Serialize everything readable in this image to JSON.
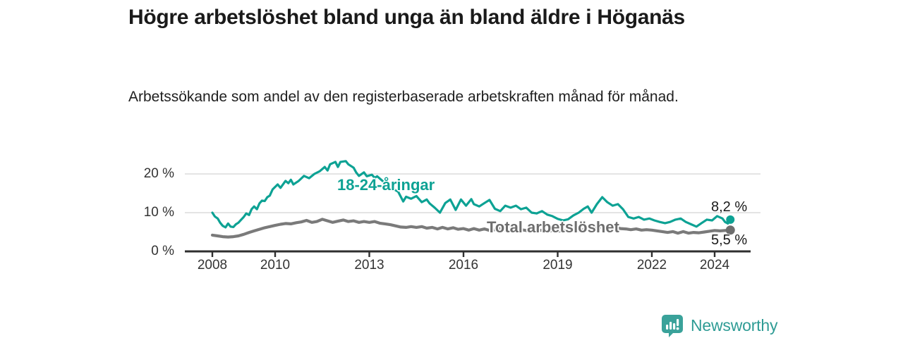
{
  "header": {
    "title": "Högre arbetslöshet bland unga än bland äldre i Höganäs",
    "subtitle": "Arbetssökande som andel av den registerbaserade arbetskraften månad för månad."
  },
  "chart_data": {
    "type": "line",
    "title": "Högre arbetslöshet bland unga än bland äldre i Höganäs",
    "subtitle": "Arbetssökande som andel av den registerbaserade arbetskraften månad för månad.",
    "unit": "%",
    "grid": "horizontal-light",
    "legend_position": "inline-labels-on-lines",
    "xlabel": "",
    "ylabel": "",
    "ylim": [
      0,
      25
    ],
    "xlim": [
      2007.1,
      2025.5
    ],
    "y_ticks": [
      {
        "value": 0,
        "label": "0 %"
      },
      {
        "value": 10,
        "label": "10 %"
      },
      {
        "value": 20,
        "label": "20 %"
      }
    ],
    "x_ticks": [
      {
        "value": 2008,
        "label": "2008"
      },
      {
        "value": 2010,
        "label": "2010"
      },
      {
        "value": 2013,
        "label": "2013"
      },
      {
        "value": 2016,
        "label": "2016"
      },
      {
        "value": 2019,
        "label": "2019"
      },
      {
        "value": 2022,
        "label": "2022"
      },
      {
        "value": 2024,
        "label": "2024"
      }
    ],
    "series": [
      {
        "name": "18-24-åringar",
        "color": "#0da294",
        "line_width": 3.2,
        "end_value": 8.2,
        "end_label": "8,2 %",
        "points": [
          [
            2008.0,
            10.0
          ],
          [
            2008.08,
            9.0
          ],
          [
            2008.17,
            8.5
          ],
          [
            2008.25,
            7.4
          ],
          [
            2008.33,
            6.6
          ],
          [
            2008.42,
            6.2
          ],
          [
            2008.5,
            7.2
          ],
          [
            2008.58,
            6.4
          ],
          [
            2008.67,
            6.3
          ],
          [
            2008.75,
            7.0
          ],
          [
            2008.83,
            7.4
          ],
          [
            2008.92,
            8.2
          ],
          [
            2009.0,
            8.9
          ],
          [
            2009.08,
            9.8
          ],
          [
            2009.17,
            9.4
          ],
          [
            2009.25,
            10.9
          ],
          [
            2009.33,
            11.6
          ],
          [
            2009.42,
            10.9
          ],
          [
            2009.5,
            12.4
          ],
          [
            2009.58,
            13.1
          ],
          [
            2009.67,
            13.0
          ],
          [
            2009.75,
            14.0
          ],
          [
            2009.83,
            14.4
          ],
          [
            2009.92,
            16.0
          ],
          [
            2010.08,
            17.3
          ],
          [
            2010.17,
            16.4
          ],
          [
            2010.33,
            18.2
          ],
          [
            2010.42,
            17.6
          ],
          [
            2010.5,
            18.5
          ],
          [
            2010.58,
            17.3
          ],
          [
            2010.75,
            18.2
          ],
          [
            2010.92,
            19.5
          ],
          [
            2011.08,
            18.9
          ],
          [
            2011.25,
            20.0
          ],
          [
            2011.42,
            20.7
          ],
          [
            2011.58,
            21.8
          ],
          [
            2011.67,
            20.9
          ],
          [
            2011.75,
            22.5
          ],
          [
            2011.92,
            23.1
          ],
          [
            2012.0,
            21.8
          ],
          [
            2012.08,
            23.1
          ],
          [
            2012.25,
            23.3
          ],
          [
            2012.33,
            22.5
          ],
          [
            2012.5,
            21.6
          ],
          [
            2012.58,
            20.4
          ],
          [
            2012.67,
            19.5
          ],
          [
            2012.83,
            20.4
          ],
          [
            2012.92,
            19.4
          ],
          [
            2013.08,
            19.8
          ],
          [
            2013.17,
            19.0
          ],
          [
            2013.25,
            19.4
          ],
          [
            2013.42,
            18.2
          ],
          [
            2013.58,
            17.3
          ],
          [
            2013.75,
            16.2
          ],
          [
            2013.92,
            15.4
          ],
          [
            2014.08,
            12.9
          ],
          [
            2014.17,
            14.1
          ],
          [
            2014.33,
            13.6
          ],
          [
            2014.5,
            14.3
          ],
          [
            2014.67,
            12.7
          ],
          [
            2014.83,
            13.4
          ],
          [
            2014.92,
            12.4
          ],
          [
            2015.08,
            11.3
          ],
          [
            2015.25,
            10.0
          ],
          [
            2015.42,
            12.5
          ],
          [
            2015.58,
            13.4
          ],
          [
            2015.75,
            10.7
          ],
          [
            2015.92,
            13.4
          ],
          [
            2016.08,
            11.8
          ],
          [
            2016.25,
            13.5
          ],
          [
            2016.33,
            12.2
          ],
          [
            2016.5,
            11.6
          ],
          [
            2016.67,
            12.5
          ],
          [
            2016.83,
            13.3
          ],
          [
            2017.0,
            11.0
          ],
          [
            2017.17,
            10.4
          ],
          [
            2017.33,
            11.8
          ],
          [
            2017.5,
            11.3
          ],
          [
            2017.67,
            11.8
          ],
          [
            2017.83,
            10.9
          ],
          [
            2018.0,
            11.3
          ],
          [
            2018.17,
            10.0
          ],
          [
            2018.33,
            9.8
          ],
          [
            2018.5,
            10.4
          ],
          [
            2018.67,
            9.5
          ],
          [
            2018.83,
            9.1
          ],
          [
            2019.0,
            8.4
          ],
          [
            2019.17,
            8.0
          ],
          [
            2019.33,
            8.3
          ],
          [
            2019.5,
            9.3
          ],
          [
            2019.67,
            10.0
          ],
          [
            2019.83,
            11.0
          ],
          [
            2019.96,
            11.6
          ],
          [
            2020.08,
            10.0
          ],
          [
            2020.25,
            12.2
          ],
          [
            2020.42,
            14.0
          ],
          [
            2020.58,
            12.7
          ],
          [
            2020.75,
            11.8
          ],
          [
            2020.92,
            12.2
          ],
          [
            2021.08,
            10.9
          ],
          [
            2021.25,
            8.9
          ],
          [
            2021.42,
            8.5
          ],
          [
            2021.58,
            8.9
          ],
          [
            2021.75,
            8.2
          ],
          [
            2021.92,
            8.5
          ],
          [
            2022.08,
            8.0
          ],
          [
            2022.25,
            7.6
          ],
          [
            2022.42,
            7.3
          ],
          [
            2022.58,
            7.6
          ],
          [
            2022.75,
            8.2
          ],
          [
            2022.92,
            8.5
          ],
          [
            2023.08,
            7.6
          ],
          [
            2023.25,
            7.0
          ],
          [
            2023.42,
            6.4
          ],
          [
            2023.58,
            7.3
          ],
          [
            2023.75,
            8.2
          ],
          [
            2023.92,
            8.0
          ],
          [
            2024.08,
            9.1
          ],
          [
            2024.25,
            8.5
          ],
          [
            2024.33,
            7.6
          ],
          [
            2024.42,
            7.2
          ],
          [
            2024.5,
            8.2
          ]
        ]
      },
      {
        "name": "Total arbetslöshet",
        "color": "#7a7a7a",
        "line_width": 4.2,
        "end_value": 5.5,
        "end_label": "5,5 %",
        "points": [
          [
            2008.0,
            4.2
          ],
          [
            2008.17,
            4.0
          ],
          [
            2008.33,
            3.8
          ],
          [
            2008.5,
            3.7
          ],
          [
            2008.67,
            3.8
          ],
          [
            2008.83,
            4.0
          ],
          [
            2009.0,
            4.4
          ],
          [
            2009.17,
            4.9
          ],
          [
            2009.33,
            5.3
          ],
          [
            2009.5,
            5.7
          ],
          [
            2009.67,
            6.1
          ],
          [
            2009.83,
            6.4
          ],
          [
            2010.0,
            6.7
          ],
          [
            2010.17,
            7.0
          ],
          [
            2010.33,
            7.2
          ],
          [
            2010.5,
            7.1
          ],
          [
            2010.67,
            7.4
          ],
          [
            2010.83,
            7.6
          ],
          [
            2011.0,
            8.0
          ],
          [
            2011.17,
            7.5
          ],
          [
            2011.33,
            7.7
          ],
          [
            2011.5,
            8.3
          ],
          [
            2011.67,
            7.9
          ],
          [
            2011.83,
            7.5
          ],
          [
            2012.0,
            7.8
          ],
          [
            2012.17,
            8.1
          ],
          [
            2012.33,
            7.7
          ],
          [
            2012.5,
            7.9
          ],
          [
            2012.67,
            7.5
          ],
          [
            2012.83,
            7.7
          ],
          [
            2013.0,
            7.5
          ],
          [
            2013.17,
            7.7
          ],
          [
            2013.33,
            7.3
          ],
          [
            2013.5,
            7.1
          ],
          [
            2013.67,
            6.9
          ],
          [
            2013.83,
            6.6
          ],
          [
            2014.0,
            6.3
          ],
          [
            2014.17,
            6.2
          ],
          [
            2014.33,
            6.4
          ],
          [
            2014.5,
            6.2
          ],
          [
            2014.67,
            6.4
          ],
          [
            2014.83,
            6.0
          ],
          [
            2015.0,
            6.2
          ],
          [
            2015.17,
            5.8
          ],
          [
            2015.33,
            6.2
          ],
          [
            2015.5,
            5.8
          ],
          [
            2015.67,
            6.1
          ],
          [
            2015.83,
            5.7
          ],
          [
            2016.0,
            5.9
          ],
          [
            2016.17,
            5.5
          ],
          [
            2016.33,
            5.9
          ],
          [
            2016.5,
            5.5
          ],
          [
            2016.67,
            5.8
          ],
          [
            2016.83,
            5.4
          ],
          [
            2017.0,
            5.6
          ],
          [
            2017.17,
            5.9
          ],
          [
            2017.33,
            5.5
          ],
          [
            2017.5,
            5.7
          ],
          [
            2017.67,
            5.4
          ],
          [
            2017.83,
            5.6
          ],
          [
            2018.0,
            5.4
          ],
          [
            2018.17,
            5.6
          ],
          [
            2018.33,
            5.3
          ],
          [
            2018.5,
            5.5
          ],
          [
            2018.67,
            5.2
          ],
          [
            2018.83,
            5.4
          ],
          [
            2019.0,
            5.2
          ],
          [
            2019.17,
            5.4
          ],
          [
            2019.33,
            5.3
          ],
          [
            2019.5,
            5.5
          ],
          [
            2019.67,
            5.4
          ],
          [
            2019.83,
            5.6
          ],
          [
            2020.0,
            5.6
          ],
          [
            2020.17,
            5.9
          ],
          [
            2020.33,
            6.2
          ],
          [
            2020.5,
            6.3
          ],
          [
            2020.67,
            6.1
          ],
          [
            2020.83,
            6.2
          ],
          [
            2021.0,
            5.9
          ],
          [
            2021.17,
            5.8
          ],
          [
            2021.33,
            5.6
          ],
          [
            2021.5,
            5.8
          ],
          [
            2021.67,
            5.5
          ],
          [
            2021.83,
            5.6
          ],
          [
            2022.0,
            5.5
          ],
          [
            2022.17,
            5.3
          ],
          [
            2022.33,
            5.1
          ],
          [
            2022.5,
            4.9
          ],
          [
            2022.67,
            5.1
          ],
          [
            2022.83,
            4.7
          ],
          [
            2023.0,
            5.1
          ],
          [
            2023.17,
            4.7
          ],
          [
            2023.33,
            4.9
          ],
          [
            2023.5,
            4.8
          ],
          [
            2023.67,
            5.0
          ],
          [
            2023.83,
            5.2
          ],
          [
            2024.0,
            5.4
          ],
          [
            2024.17,
            5.3
          ],
          [
            2024.33,
            5.4
          ],
          [
            2024.5,
            5.5
          ]
        ]
      }
    ],
    "colors": {
      "grid": "#dcdcdc",
      "axis": "#2f2f2f",
      "tick_text": "#333333",
      "young_series": "#0da294",
      "total_series": "#7a7a7a",
      "total_dot": "#6e6e6e"
    }
  },
  "footer": {
    "brand": "Newsworthy",
    "brand_color": "#2f9c95",
    "logo_icon": "bar-chart-speech-bubble-icon"
  }
}
